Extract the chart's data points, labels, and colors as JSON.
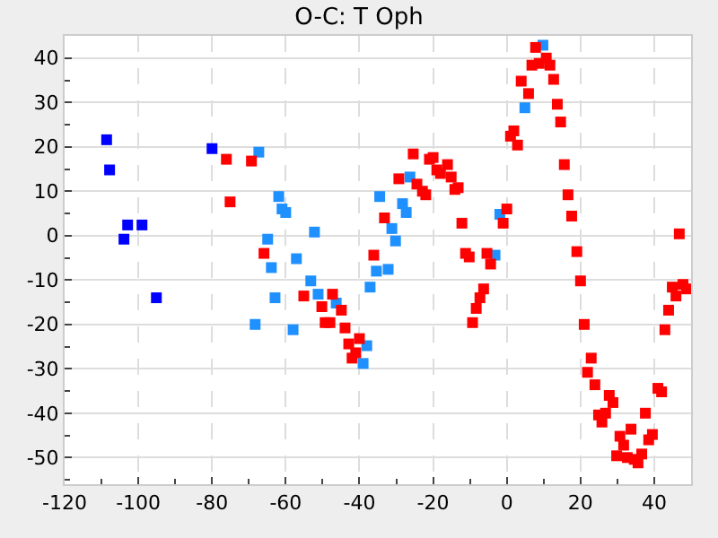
{
  "chart_data": {
    "type": "scatter",
    "title": "O-C: T Oph",
    "marker": "square",
    "grid": true,
    "xlim": [
      -120,
      50
    ],
    "ylim": [
      -56,
      45
    ],
    "xticks": [
      -120,
      {
        "value": -110,
        "label": null
      },
      -100,
      {
        "value": -90,
        "label": null
      },
      -80,
      {
        "value": -70,
        "label": null
      },
      -60,
      {
        "value": -50,
        "label": null
      },
      -40,
      {
        "value": -30,
        "label": null
      },
      -20,
      {
        "value": -10,
        "label": null
      },
      0,
      {
        "value": 10,
        "label": null
      },
      20,
      {
        "value": 30,
        "label": null
      },
      40
    ],
    "yticks": [
      {
        "value": -55,
        "label": null
      },
      -50,
      {
        "value": -45,
        "label": null
      },
      -40,
      {
        "value": -35,
        "label": null
      },
      -30,
      {
        "value": -25,
        "label": null
      },
      -20,
      {
        "value": -15,
        "label": null
      },
      -10,
      {
        "value": -5,
        "label": null
      },
      0,
      {
        "value": 5,
        "label": null
      },
      10,
      {
        "value": 15,
        "label": null
      },
      20,
      {
        "value": 25,
        "label": null
      },
      30,
      {
        "value": 35,
        "label": null
      },
      40
    ],
    "series": [
      {
        "color": "#0000ff",
        "x": [
          -108.6,
          -107.8,
          -102.9,
          -99.0,
          -103.9,
          -80.0,
          -95.1
        ],
        "values": [
          21.6,
          14.8,
          2.4,
          2.4,
          -0.8,
          19.6,
          -14.0
        ]
      },
      {
        "color": "#1e90ff",
        "x": [
          -67.3,
          -61.9,
          -61.0,
          -60.0,
          -52.2,
          -64.9,
          -57.1,
          -63.9,
          -53.2,
          -35.4,
          -62.9,
          -51.2,
          -46.3,
          -68.3,
          -58.0,
          -38.0,
          -39.0,
          -37.1,
          9.8,
          4.9,
          -26.3,
          -34.5,
          -28.3,
          -27.3,
          -31.2,
          -30.2,
          -1.9,
          -32.2,
          -3.2
        ],
        "values": [
          18.8,
          8.8,
          6.0,
          5.2,
          0.8,
          -0.8,
          -5.2,
          -7.2,
          -10.2,
          -8.0,
          -14.0,
          -13.2,
          -15.2,
          -20.0,
          -21.2,
          -24.8,
          -28.8,
          -11.6,
          42.9,
          28.8,
          13.2,
          8.8,
          7.2,
          5.2,
          1.6,
          -1.2,
          4.8,
          -7.6,
          -4.4
        ]
      },
      {
        "color": "#ff0000",
        "x": [
          -76.1,
          -69.3,
          -75.1,
          -65.9,
          -36.1,
          -55.1,
          -47.3,
          -50.2,
          -44.9,
          -49.3,
          -48.0,
          -43.9,
          -42.9,
          -40.0,
          -41.0,
          -42.0,
          7.8,
          6.8,
          8.8,
          10.7,
          11.7,
          12.7,
          3.9,
          5.9,
          13.7,
          14.6,
          1.9,
          1.0,
          2.9,
          15.6,
          -25.4,
          -21.0,
          -20.0,
          -16.1,
          -19.0,
          -18.0,
          -15.1,
          -29.3,
          -24.4,
          -22.9,
          -22.0,
          -14.1,
          -13.2,
          16.6,
          -33.2,
          0.0,
          -1.0,
          17.6,
          -12.2,
          -11.2,
          -10.2,
          -5.4,
          -4.4,
          19.0,
          20.0,
          46.8,
          47.8,
          -6.3,
          -7.3,
          -8.3,
          -9.3,
          21.0,
          22.9,
          21.9,
          23.9,
          27.8,
          28.8,
          26.8,
          24.9,
          25.8,
          37.6,
          30.7,
          31.7,
          33.7,
          39.5,
          38.5,
          29.8,
          32.7,
          34.6,
          35.6,
          36.6,
          41.0,
          42.0,
          42.9,
          43.9,
          45.9,
          44.9,
          48.8
        ],
        "values": [
          17.2,
          16.8,
          7.6,
          -4.0,
          -4.4,
          -13.6,
          -13.2,
          -16.0,
          -16.8,
          -19.6,
          -19.6,
          -20.8,
          -24.4,
          -23.2,
          -26.4,
          -27.6,
          42.4,
          38.4,
          38.8,
          40.0,
          38.4,
          35.2,
          34.8,
          32.0,
          29.6,
          25.6,
          23.6,
          22.4,
          20.4,
          16.0,
          18.4,
          17.2,
          17.6,
          16.0,
          14.8,
          14.0,
          13.2,
          12.8,
          11.6,
          10.0,
          9.2,
          10.4,
          10.8,
          9.2,
          4.0,
          6.0,
          2.8,
          4.4,
          2.8,
          -4.0,
          -4.8,
          -4.0,
          -6.4,
          -3.6,
          -10.2,
          0.4,
          -11.0,
          -12.0,
          -14.0,
          -16.4,
          -19.6,
          -20.0,
          -27.6,
          -30.8,
          -33.6,
          -36.0,
          -37.6,
          -40.0,
          -40.4,
          -42.0,
          -40.0,
          -45.2,
          -47.2,
          -43.6,
          -44.8,
          -46.0,
          -49.6,
          -50.0,
          -50.4,
          -51.2,
          -49.2,
          -34.4,
          -35.2,
          -21.2,
          -16.8,
          -13.6,
          -11.6,
          -12.0
        ]
      }
    ]
  }
}
